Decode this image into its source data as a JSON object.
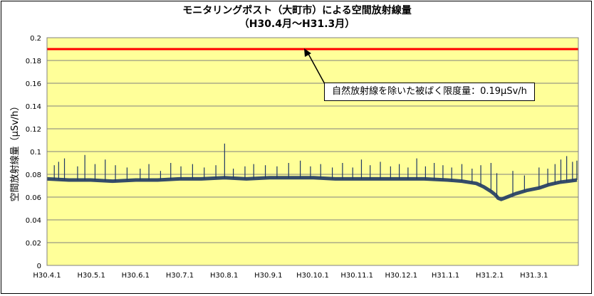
{
  "chart_data": {
    "type": "line",
    "title_line1": "モニタリングポスト（大町市）による空間放射線量",
    "title_line2": "（H30.4月～H31.3月）",
    "ylabel": "空間放射線量（μSv/h）",
    "xlabel": "",
    "ylim": [
      0,
      0.2
    ],
    "y_ticks": [
      "0",
      "0.02",
      "0.04",
      "0.06",
      "0.08",
      "0.1",
      "0.12",
      "0.14",
      "0.16",
      "0.18",
      "0.2"
    ],
    "x_ticks": [
      "H30.4.1",
      "H30.5.1",
      "H30.6.1",
      "H30.7.1",
      "H30.8.1",
      "H30.9.1",
      "H30.10.1",
      "H30.11.1",
      "H30.12.1",
      "H31.1.1",
      "H31.2.1",
      "H31.3.1"
    ],
    "grid": true,
    "limit_line": {
      "value": 0.19,
      "color": "#ff0000"
    },
    "annotation": "自然放射線を除いた被ばく限度量：0.19μSv/h",
    "series": [
      {
        "color": "#1f3864",
        "points": [
          {
            "x": 0,
            "y": 0.076
          },
          {
            "x": 15,
            "y": 0.075
          },
          {
            "x": 30,
            "y": 0.075
          },
          {
            "x": 45,
            "y": 0.074
          },
          {
            "x": 61,
            "y": 0.075
          },
          {
            "x": 76,
            "y": 0.075
          },
          {
            "x": 91,
            "y": 0.076
          },
          {
            "x": 106,
            "y": 0.076
          },
          {
            "x": 122,
            "y": 0.077
          },
          {
            "x": 137,
            "y": 0.076
          },
          {
            "x": 153,
            "y": 0.077
          },
          {
            "x": 168,
            "y": 0.077
          },
          {
            "x": 183,
            "y": 0.077
          },
          {
            "x": 198,
            "y": 0.076
          },
          {
            "x": 214,
            "y": 0.076
          },
          {
            "x": 229,
            "y": 0.076
          },
          {
            "x": 244,
            "y": 0.076
          },
          {
            "x": 259,
            "y": 0.076
          },
          {
            "x": 275,
            "y": 0.075
          },
          {
            "x": 285,
            "y": 0.074
          },
          {
            "x": 295,
            "y": 0.072
          },
          {
            "x": 300,
            "y": 0.069
          },
          {
            "x": 305,
            "y": 0.065
          },
          {
            "x": 308,
            "y": 0.062
          },
          {
            "x": 310,
            "y": 0.059
          },
          {
            "x": 312,
            "y": 0.058
          },
          {
            "x": 316,
            "y": 0.06
          },
          {
            "x": 322,
            "y": 0.063
          },
          {
            "x": 330,
            "y": 0.066
          },
          {
            "x": 338,
            "y": 0.068
          },
          {
            "x": 345,
            "y": 0.071
          },
          {
            "x": 352,
            "y": 0.073
          },
          {
            "x": 358,
            "y": 0.074
          },
          {
            "x": 364,
            "y": 0.075
          }
        ],
        "spikes": [
          {
            "x": 5,
            "y": 0.088
          },
          {
            "x": 8,
            "y": 0.091
          },
          {
            "x": 12,
            "y": 0.094
          },
          {
            "x": 21,
            "y": 0.087
          },
          {
            "x": 26,
            "y": 0.097
          },
          {
            "x": 33,
            "y": 0.089
          },
          {
            "x": 40,
            "y": 0.093
          },
          {
            "x": 47,
            "y": 0.088
          },
          {
            "x": 55,
            "y": 0.086
          },
          {
            "x": 64,
            "y": 0.085
          },
          {
            "x": 70,
            "y": 0.089
          },
          {
            "x": 78,
            "y": 0.083
          },
          {
            "x": 85,
            "y": 0.09
          },
          {
            "x": 92,
            "y": 0.087
          },
          {
            "x": 100,
            "y": 0.089
          },
          {
            "x": 108,
            "y": 0.086
          },
          {
            "x": 116,
            "y": 0.088
          },
          {
            "x": 122,
            "y": 0.107
          },
          {
            "x": 128,
            "y": 0.085
          },
          {
            "x": 136,
            "y": 0.087
          },
          {
            "x": 142,
            "y": 0.089
          },
          {
            "x": 150,
            "y": 0.088
          },
          {
            "x": 158,
            "y": 0.087
          },
          {
            "x": 166,
            "y": 0.09
          },
          {
            "x": 174,
            "y": 0.092
          },
          {
            "x": 181,
            "y": 0.087
          },
          {
            "x": 188,
            "y": 0.089
          },
          {
            "x": 196,
            "y": 0.086
          },
          {
            "x": 203,
            "y": 0.09
          },
          {
            "x": 210,
            "y": 0.086
          },
          {
            "x": 216,
            "y": 0.093
          },
          {
            "x": 222,
            "y": 0.088
          },
          {
            "x": 229,
            "y": 0.091
          },
          {
            "x": 236,
            "y": 0.087
          },
          {
            "x": 242,
            "y": 0.089
          },
          {
            "x": 248,
            "y": 0.086
          },
          {
            "x": 254,
            "y": 0.094
          },
          {
            "x": 260,
            "y": 0.087
          },
          {
            "x": 266,
            "y": 0.09
          },
          {
            "x": 272,
            "y": 0.088
          },
          {
            "x": 278,
            "y": 0.086
          },
          {
            "x": 285,
            "y": 0.089
          },
          {
            "x": 292,
            "y": 0.085
          },
          {
            "x": 298,
            "y": 0.088
          },
          {
            "x": 305,
            "y": 0.09
          },
          {
            "x": 309,
            "y": 0.081
          },
          {
            "x": 320,
            "y": 0.083
          },
          {
            "x": 328,
            "y": 0.079
          },
          {
            "x": 338,
            "y": 0.086
          },
          {
            "x": 344,
            "y": 0.085
          },
          {
            "x": 349,
            "y": 0.089
          },
          {
            "x": 353,
            "y": 0.093
          },
          {
            "x": 357,
            "y": 0.096
          },
          {
            "x": 361,
            "y": 0.091
          },
          {
            "x": 364,
            "y": 0.092
          }
        ]
      }
    ]
  }
}
